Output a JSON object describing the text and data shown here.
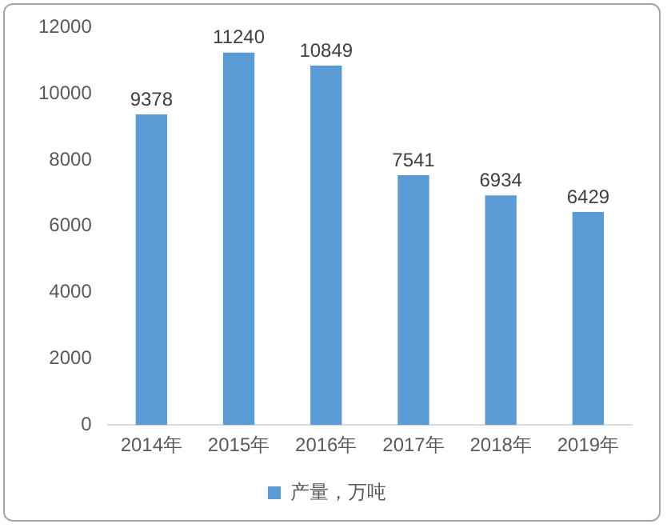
{
  "chart_data": {
    "type": "bar",
    "categories": [
      "2014年",
      "2015年",
      "2016年",
      "2017年",
      "2018年",
      "2019年"
    ],
    "series": [
      {
        "name": "产量，万吨",
        "color": "#5b9bd5",
        "values": [
          9378,
          11240,
          10849,
          7541,
          6934,
          6429
        ]
      }
    ],
    "ylim": [
      0,
      12000
    ],
    "yticks": [
      0,
      2000,
      4000,
      6000,
      8000,
      10000,
      12000
    ],
    "grid": false,
    "legend": "bottom",
    "data_labels": true
  }
}
